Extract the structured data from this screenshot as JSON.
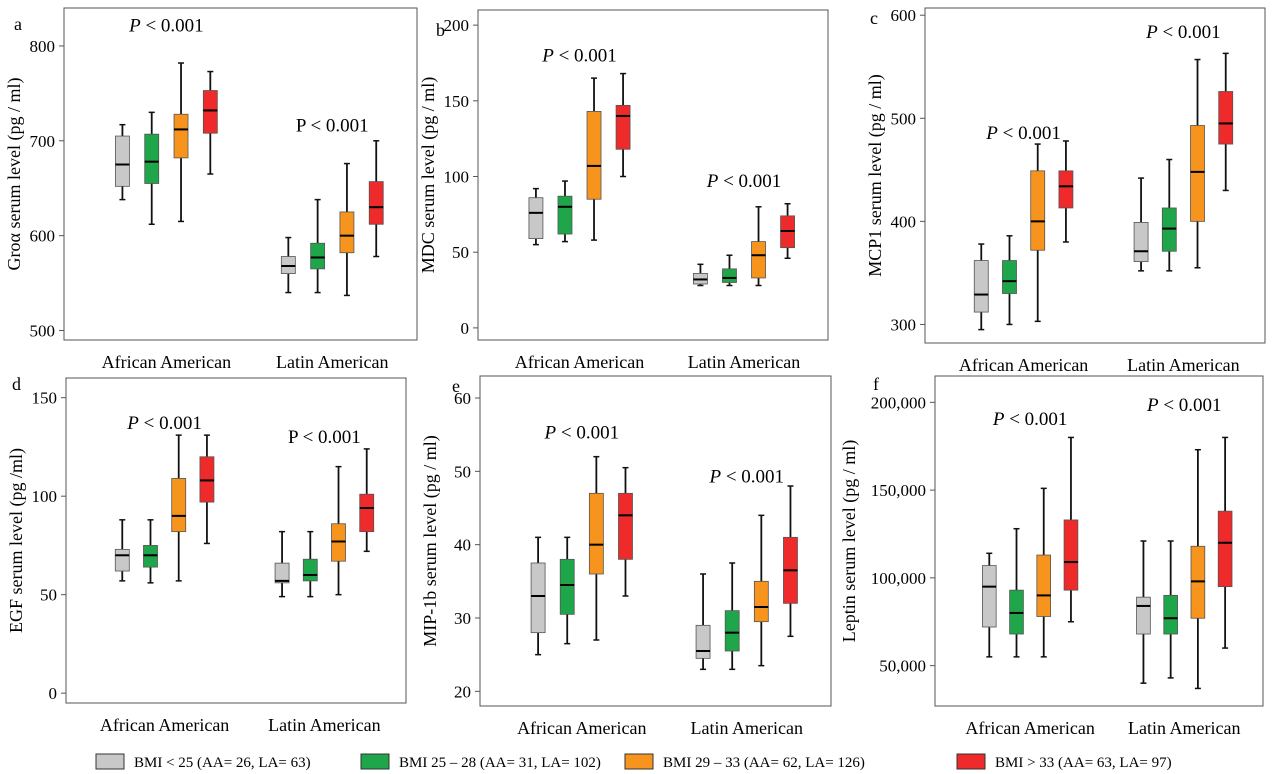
{
  "colors": {
    "BMI < 25": "#c8c8c8",
    "BMI 25 – 28": "#1fa64a",
    "BMI 29 – 33": "#f7941d",
    "BMI > 33": "#ee2a2a",
    "axis": "#555555",
    "whisker": "#111111"
  },
  "legend": [
    {
      "label": "BMI < 25 (AA= 26, LA= 63)",
      "series": "BMI < 25"
    },
    {
      "label": "BMI 25 – 28 (AA= 31, LA= 102)",
      "series": "BMI 25 – 28"
    },
    {
      "label": "BMI 29 – 33 (AA= 62, LA= 126)",
      "series": "BMI 29 – 33"
    },
    {
      "label": "BMI > 33 (AA= 63, LA= 97)",
      "series": "BMI > 33"
    }
  ],
  "chart_data": [
    {
      "type": "box",
      "panel_label": "a",
      "ylabel": "Groα serum level (pg / ml)",
      "ylim": [
        490,
        840
      ],
      "yticks": [
        {
          "v": 500,
          "t": "500"
        },
        {
          "v": 600,
          "t": "600"
        },
        {
          "v": 700,
          "t": "700"
        },
        {
          "v": 800,
          "t": "800"
        }
      ],
      "categories": [
        "African American",
        "Latin American"
      ],
      "annotations": [
        {
          "text": "P < 0.001",
          "italic_p": true,
          "group": 0,
          "y": 815
        },
        {
          "text": "P < 0.001",
          "italic_p": false,
          "group": 1,
          "y": 710
        }
      ],
      "groups": [
        [
          {
            "series": "BMI < 25",
            "min": 638,
            "q1": 652,
            "median": 675,
            "q3": 705,
            "max": 717
          },
          {
            "series": "BMI 25 – 28",
            "min": 612,
            "q1": 655,
            "median": 678,
            "q3": 707,
            "max": 730
          },
          {
            "series": "BMI 29 – 33",
            "min": 615,
            "q1": 682,
            "median": 712,
            "q3": 728,
            "max": 782
          },
          {
            "series": "BMI > 33",
            "min": 665,
            "q1": 708,
            "median": 732,
            "q3": 753,
            "max": 773
          }
        ],
        [
          {
            "series": "BMI < 25",
            "min": 540,
            "q1": 560,
            "median": 568,
            "q3": 578,
            "max": 598
          },
          {
            "series": "BMI 25 – 28",
            "min": 540,
            "q1": 565,
            "median": 577,
            "q3": 592,
            "max": 638
          },
          {
            "series": "BMI 29 – 33",
            "min": 537,
            "q1": 582,
            "median": 600,
            "q3": 625,
            "max": 676
          },
          {
            "series": "BMI > 33",
            "min": 578,
            "q1": 612,
            "median": 630,
            "q3": 657,
            "max": 700
          }
        ]
      ]
    },
    {
      "type": "box",
      "panel_label": "b",
      "ylabel": "MDC serum level (pg / ml)",
      "ylim": [
        -8,
        210
      ],
      "yticks": [
        {
          "v": 0,
          "t": "0"
        },
        {
          "v": 50,
          "t": "50"
        },
        {
          "v": 100,
          "t": "100"
        },
        {
          "v": 150,
          "t": "150"
        },
        {
          "v": 200,
          "t": "200"
        }
      ],
      "categories": [
        "African American",
        "Latin American"
      ],
      "annotations": [
        {
          "text": "P < 0.001",
          "italic_p": true,
          "group": 0,
          "y": 176
        },
        {
          "text": "P < 0.001",
          "italic_p": true,
          "group": 1,
          "y": 93
        }
      ],
      "groups": [
        [
          {
            "series": "BMI < 25",
            "min": 55,
            "q1": 59,
            "median": 76,
            "q3": 86,
            "max": 92
          },
          {
            "series": "BMI 25 – 28",
            "min": 57,
            "q1": 62,
            "median": 80,
            "q3": 87,
            "max": 97
          },
          {
            "series": "BMI 29 – 33",
            "min": 58,
            "q1": 85,
            "median": 107,
            "q3": 143,
            "max": 165
          },
          {
            "series": "BMI > 33",
            "min": 100,
            "q1": 118,
            "median": 140,
            "q3": 147,
            "max": 168
          }
        ],
        [
          {
            "series": "BMI < 25",
            "min": 28,
            "q1": 29,
            "median": 32,
            "q3": 36,
            "max": 42
          },
          {
            "series": "BMI 25 – 28",
            "min": 28,
            "q1": 30,
            "median": 33,
            "q3": 39,
            "max": 48
          },
          {
            "series": "BMI 29 – 33",
            "min": 28,
            "q1": 33,
            "median": 48,
            "q3": 57,
            "max": 80
          },
          {
            "series": "BMI > 33",
            "min": 46,
            "q1": 53,
            "median": 64,
            "q3": 74,
            "max": 82
          }
        ]
      ]
    },
    {
      "type": "box",
      "panel_label": "c",
      "ylabel": "MCP1 serum level (pg / ml)",
      "ylim": [
        282,
        607
      ],
      "yticks": [
        {
          "v": 300,
          "t": "300"
        },
        {
          "v": 400,
          "t": "400"
        },
        {
          "v": 500,
          "t": "500"
        },
        {
          "v": 600,
          "t": "600"
        }
      ],
      "categories": [
        "African American",
        "Latin American"
      ],
      "annotations": [
        {
          "text": "P < 0.001",
          "italic_p": true,
          "group": 0,
          "y": 480
        },
        {
          "text": "P < 0.001",
          "italic_p": true,
          "group": 1,
          "y": 578
        }
      ],
      "groups": [
        [
          {
            "series": "BMI < 25",
            "min": 295,
            "q1": 312,
            "median": 329,
            "q3": 362,
            "max": 378
          },
          {
            "series": "BMI 25 – 28",
            "min": 300,
            "q1": 330,
            "median": 342,
            "q3": 362,
            "max": 386
          },
          {
            "series": "BMI 29 – 33",
            "min": 303,
            "q1": 372,
            "median": 400,
            "q3": 449,
            "max": 475
          },
          {
            "series": "BMI > 33",
            "min": 380,
            "q1": 413,
            "median": 434,
            "q3": 449,
            "max": 478
          }
        ],
        [
          {
            "series": "BMI < 25",
            "min": 352,
            "q1": 361,
            "median": 371,
            "q3": 399,
            "max": 442
          },
          {
            "series": "BMI 25 – 28",
            "min": 352,
            "q1": 371,
            "median": 393,
            "q3": 413,
            "max": 460
          },
          {
            "series": "BMI 29 – 33",
            "min": 355,
            "q1": 400,
            "median": 448,
            "q3": 493,
            "max": 557
          },
          {
            "series": "BMI > 33",
            "min": 430,
            "q1": 475,
            "median": 495,
            "q3": 526,
            "max": 563
          }
        ]
      ]
    },
    {
      "type": "box",
      "panel_label": "d",
      "ylabel": "EGF serum level (pg /ml)",
      "ylim": [
        -5,
        160
      ],
      "yticks": [
        {
          "v": 0,
          "t": "0"
        },
        {
          "v": 50,
          "t": "50"
        },
        {
          "v": 100,
          "t": "100"
        },
        {
          "v": 150,
          "t": "150"
        }
      ],
      "categories": [
        "African American",
        "Latin American"
      ],
      "annotations": [
        {
          "text": "P < 0.001",
          "italic_p": true,
          "group": 0,
          "y": 134
        },
        {
          "text": "P < 0.001",
          "italic_p": false,
          "group": 1,
          "y": 127
        }
      ],
      "groups": [
        [
          {
            "series": "BMI < 25",
            "min": 57,
            "q1": 62,
            "median": 70,
            "q3": 73,
            "max": 88
          },
          {
            "series": "BMI 25 – 28",
            "min": 56,
            "q1": 64,
            "median": 70,
            "q3": 75,
            "max": 88
          },
          {
            "series": "BMI 29 – 33",
            "min": 57,
            "q1": 82,
            "median": 90,
            "q3": 109,
            "max": 131
          },
          {
            "series": "BMI > 33",
            "min": 76,
            "q1": 97,
            "median": 108,
            "q3": 120,
            "max": 131
          }
        ],
        [
          {
            "series": "BMI < 25",
            "min": 49,
            "q1": 56,
            "median": 57,
            "q3": 66,
            "max": 82
          },
          {
            "series": "BMI 25 – 28",
            "min": 49,
            "q1": 57,
            "median": 60,
            "q3": 68,
            "max": 82
          },
          {
            "series": "BMI 29 – 33",
            "min": 50,
            "q1": 67,
            "median": 77,
            "q3": 86,
            "max": 115
          },
          {
            "series": "BMI > 33",
            "min": 72,
            "q1": 82,
            "median": 94,
            "q3": 101,
            "max": 124
          }
        ]
      ]
    },
    {
      "type": "box",
      "panel_label": "e",
      "ylabel": "MIP-1b serum level (pg / ml)",
      "ylim": [
        18,
        63
      ],
      "yticks": [
        {
          "v": 20,
          "t": "20"
        },
        {
          "v": 30,
          "t": "30"
        },
        {
          "v": 40,
          "t": "40"
        },
        {
          "v": 50,
          "t": "50"
        },
        {
          "v": 60,
          "t": "60"
        }
      ],
      "categories": [
        "African American",
        "Latin American"
      ],
      "annotations": [
        {
          "text": "P < 0.001",
          "italic_p": true,
          "group": 0,
          "y": 54.5
        },
        {
          "text": "P < 0.001",
          "italic_p": true,
          "group": 1,
          "y": 48.5
        }
      ],
      "groups": [
        [
          {
            "series": "BMI < 25",
            "min": 25,
            "q1": 28,
            "median": 33,
            "q3": 37.5,
            "max": 41
          },
          {
            "series": "BMI 25 – 28",
            "min": 26.5,
            "q1": 30.5,
            "median": 34.5,
            "q3": 38,
            "max": 41
          },
          {
            "series": "BMI 29 – 33",
            "min": 27,
            "q1": 36,
            "median": 40,
            "q3": 47,
            "max": 52
          },
          {
            "series": "BMI > 33",
            "min": 33,
            "q1": 38,
            "median": 44,
            "q3": 47,
            "max": 50.5
          }
        ],
        [
          {
            "series": "BMI < 25",
            "min": 23,
            "q1": 24.5,
            "median": 25.5,
            "q3": 29,
            "max": 36
          },
          {
            "series": "BMI 25 – 28",
            "min": 23,
            "q1": 25.5,
            "median": 28,
            "q3": 31,
            "max": 37.5
          },
          {
            "series": "BMI 29 – 33",
            "min": 23.5,
            "q1": 29.5,
            "median": 31.5,
            "q3": 35,
            "max": 44
          },
          {
            "series": "BMI > 33",
            "min": 27.5,
            "q1": 32,
            "median": 36.5,
            "q3": 41,
            "max": 48
          }
        ]
      ]
    },
    {
      "type": "box",
      "panel_label": "f",
      "ylabel": "Leptin serum level (pg / ml)",
      "ylim": [
        27000,
        215000
      ],
      "yticks": [
        {
          "v": 50000,
          "t": "50,000"
        },
        {
          "v": 100000,
          "t": "100,000"
        },
        {
          "v": 150000,
          "t": "150,000"
        },
        {
          "v": 200000,
          "t": "200,000"
        }
      ],
      "categories": [
        "African American",
        "Latin American"
      ],
      "annotations": [
        {
          "text": "P < 0.001",
          "italic_p": true,
          "group": 0,
          "y": 187000
        },
        {
          "text": "P < 0.001",
          "italic_p": true,
          "group": 1,
          "y": 195000
        }
      ],
      "groups": [
        [
          {
            "series": "BMI < 25",
            "min": 55000,
            "q1": 72000,
            "median": 95000,
            "q3": 107000,
            "max": 114000
          },
          {
            "series": "BMI 25 – 28",
            "min": 55000,
            "q1": 68000,
            "median": 80000,
            "q3": 93000,
            "max": 128000
          },
          {
            "series": "BMI 29 – 33",
            "min": 55000,
            "q1": 78000,
            "median": 90000,
            "q3": 113000,
            "max": 151000
          },
          {
            "series": "BMI > 33",
            "min": 75000,
            "q1": 93000,
            "median": 109000,
            "q3": 133000,
            "max": 180000
          }
        ],
        [
          {
            "series": "BMI < 25",
            "min": 40000,
            "q1": 68000,
            "median": 84000,
            "q3": 89000,
            "max": 121000
          },
          {
            "series": "BMI 25 – 28",
            "min": 43000,
            "q1": 68000,
            "median": 77000,
            "q3": 90000,
            "max": 121000
          },
          {
            "series": "BMI 29 – 33",
            "min": 37000,
            "q1": 77000,
            "median": 98000,
            "q3": 118000,
            "max": 173000
          },
          {
            "series": "BMI > 33",
            "min": 60000,
            "q1": 95000,
            "median": 120000,
            "q3": 138000,
            "max": 180000
          }
        ]
      ]
    }
  ]
}
